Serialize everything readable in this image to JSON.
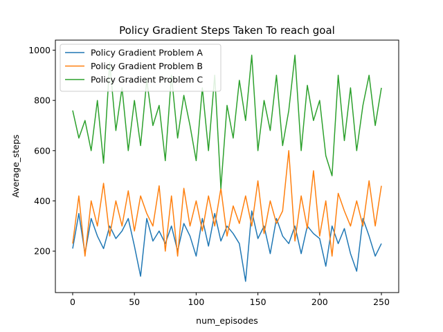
{
  "chart_data": {
    "type": "line",
    "title": "Policy Gradient Steps Taken To reach goal",
    "xlabel": "num_episodes",
    "ylabel": "Average_steps",
    "xlim": [
      -14,
      264
    ],
    "ylim": [
      35,
      1040
    ],
    "xticks": [
      0,
      50,
      100,
      150,
      200,
      250
    ],
    "yticks": [
      200,
      400,
      600,
      800,
      1000
    ],
    "grid": false,
    "legend_position": "top-left",
    "series": [
      {
        "name": "Policy Gradient  Problem A",
        "color": "#1f77b4",
        "x": [
          0,
          5,
          10,
          15,
          20,
          25,
          30,
          35,
          40,
          45,
          50,
          55,
          60,
          65,
          70,
          75,
          80,
          85,
          90,
          95,
          100,
          105,
          110,
          115,
          120,
          125,
          130,
          135,
          140,
          145,
          150,
          155,
          160,
          165,
          170,
          175,
          180,
          185,
          190,
          195,
          200,
          205,
          210,
          215,
          220,
          225,
          230,
          235,
          240,
          245,
          250
        ],
        "values": [
          210,
          350,
          190,
          330,
          260,
          210,
          300,
          250,
          280,
          330,
          220,
          100,
          330,
          240,
          280,
          230,
          300,
          200,
          310,
          260,
          180,
          330,
          220,
          350,
          240,
          300,
          270,
          230,
          80,
          360,
          250,
          300,
          190,
          330,
          260,
          230,
          300,
          190,
          300,
          270,
          250,
          140,
          300,
          230,
          290,
          190,
          120,
          330,
          260,
          180,
          230
        ]
      },
      {
        "name": "Policy Gradient  Problem B",
        "color": "#ff7f0e",
        "x": [
          0,
          5,
          10,
          15,
          20,
          25,
          30,
          35,
          40,
          45,
          50,
          55,
          60,
          65,
          70,
          75,
          80,
          85,
          90,
          95,
          100,
          105,
          110,
          115,
          120,
          125,
          130,
          135,
          140,
          145,
          150,
          155,
          160,
          165,
          170,
          175,
          180,
          185,
          190,
          195,
          200,
          205,
          210,
          215,
          220,
          225,
          230,
          235,
          240,
          245,
          250
        ],
        "values": [
          230,
          420,
          180,
          400,
          300,
          470,
          260,
          400,
          300,
          440,
          280,
          420,
          350,
          300,
          460,
          200,
          420,
          180,
          450,
          300,
          400,
          280,
          420,
          300,
          450,
          260,
          380,
          310,
          420,
          300,
          480,
          270,
          400,
          310,
          360,
          600,
          240,
          420,
          290,
          520,
          260,
          400,
          180,
          430,
          360,
          300,
          400,
          300,
          480,
          300,
          460
        ]
      },
      {
        "name": "Policy Gradient Problem C",
        "color": "#2ca02c",
        "x": [
          0,
          5,
          10,
          15,
          20,
          25,
          30,
          35,
          40,
          45,
          50,
          55,
          60,
          65,
          70,
          75,
          80,
          85,
          90,
          95,
          100,
          105,
          110,
          115,
          120,
          125,
          130,
          135,
          140,
          145,
          150,
          155,
          160,
          165,
          170,
          175,
          180,
          185,
          190,
          195,
          200,
          205,
          210,
          215,
          220,
          225,
          230,
          235,
          240,
          245,
          250
        ],
        "values": [
          760,
          650,
          720,
          600,
          800,
          550,
          950,
          680,
          850,
          600,
          800,
          620,
          880,
          700,
          780,
          560,
          900,
          650,
          820,
          700,
          560,
          850,
          600,
          900,
          450,
          780,
          650,
          880,
          720,
          980,
          600,
          800,
          680,
          900,
          620,
          760,
          980,
          600,
          860,
          720,
          800,
          580,
          500,
          900,
          640,
          850,
          600,
          780,
          900,
          700,
          850
        ]
      }
    ]
  }
}
